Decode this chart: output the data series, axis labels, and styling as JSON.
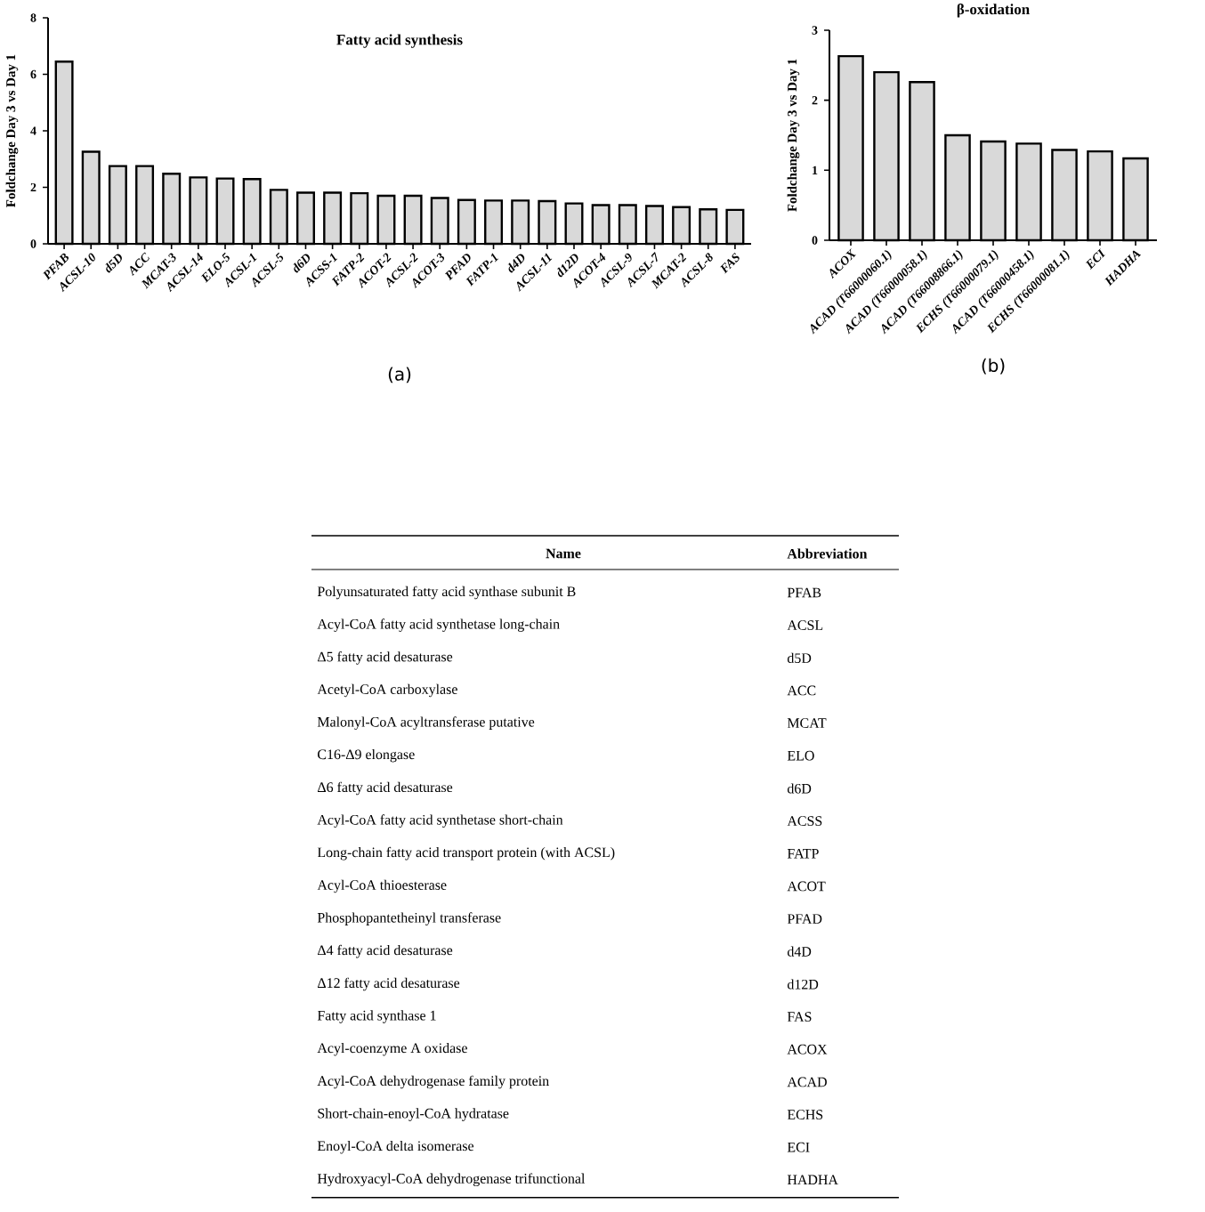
{
  "chart_data": [
    {
      "type": "bar",
      "title": "Fatty acid synthesis",
      "ylabel": "Foldchange Day 3 vs Day 1",
      "annotations": [
        "(a)"
      ],
      "color": "#d9d9d9",
      "ylim": [
        0,
        8
      ],
      "yticks": [
        0,
        2,
        4,
        6,
        8
      ],
      "categories": [
        "PFAB",
        "ACSL-10",
        "d5D",
        "ACC",
        "MCAT-3",
        "ACSL-14",
        "ELO-5",
        "ACSL-1",
        "ACSL-5",
        "d6D",
        "ACSS-1",
        "FATP-2",
        "ACOT-2",
        "ACSL-2",
        "ACOT-3",
        "PFAD",
        "FATP-1",
        "d4D",
        "ACSL-11",
        "d12D",
        "ACOT-4",
        "ACSL-9",
        "ACSL-7",
        "MCAT-2",
        "ACSL-8",
        "FAS"
      ],
      "values": [
        6.45,
        3.26,
        2.75,
        2.75,
        2.48,
        2.35,
        2.31,
        2.29,
        1.91,
        1.81,
        1.81,
        1.79,
        1.7,
        1.7,
        1.62,
        1.55,
        1.53,
        1.53,
        1.51,
        1.43,
        1.37,
        1.37,
        1.34,
        1.3,
        1.22,
        1.2
      ]
    },
    {
      "type": "bar",
      "title": "β-oxidation",
      "ylabel": "Foldchange Day 3 vs Day 1",
      "annotations": [
        "(b)"
      ],
      "color": "#d9d9d9",
      "ylim": [
        0,
        3
      ],
      "yticks": [
        0,
        1,
        2,
        3
      ],
      "categories": [
        "ACOX",
        "ACAD (T66000060.1)",
        "ACAD (T66000058.1)",
        "ACAD (T66008866.1)",
        "ECHS (T66000079.1)",
        "ACAD (T66000458.1)",
        "ECHS (T66000081.1)",
        "ECI",
        "HADHA"
      ],
      "values": [
        2.63,
        2.4,
        2.26,
        1.5,
        1.41,
        1.38,
        1.29,
        1.27,
        1.17
      ]
    },
    {
      "type": "other",
      "annotations": [
        "Name",
        "Abbreviation",
        "Polyunsaturated fatty acid synthase subunit B",
        "PFAB",
        "Acyl-CoA fatty acid synthetase long-chain",
        "ACSL",
        "Δ5 fatty acid desaturase",
        "d5D",
        "Acetyl-CoA carboxylase",
        "ACC",
        "Malonyl-CoA acyltransferase putative",
        "MCAT",
        "C16-Δ9 elongase",
        "ELO",
        "Δ6 fatty acid desaturase",
        "d6D",
        "Acyl-CoA fatty acid synthetase short-chain",
        "ACSS",
        "Long-chain fatty acid transport protein (with ACSL)",
        "FATP",
        "Acyl-CoA thioesterase",
        "ACOT",
        "Phosphopantetheinyl transferase",
        "PFAD",
        "Δ4 fatty acid desaturase",
        "d4D",
        "Δ12 fatty acid desaturase",
        "d12D",
        "Fatty acid synthase 1",
        "FAS",
        "Acyl-coenzyme A oxidase",
        "ACOX",
        "Acyl-CoA dehydrogenase family protein",
        "ACAD",
        "Short-chain-enoyl-CoA hydratase",
        "ECHS",
        "Enoyl-CoA delta isomerase",
        "ECI",
        "Hydroxyacyl-CoA dehydrogenase trifunctional",
        "HADHA"
      ]
    }
  ]
}
